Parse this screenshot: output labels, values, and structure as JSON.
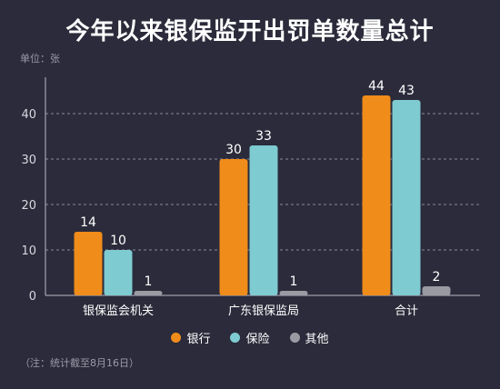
{
  "title": "今年以来银保监开出罚单数量总计",
  "unit_label": "单位：张",
  "note": "（注：统计截至8月16日）",
  "chart_data": {
    "type": "bar",
    "title": "今年以来银保监开出罚单数量总计",
    "categories": [
      "银保监会机关",
      "广东银保监局",
      "合计"
    ],
    "series": [
      {
        "name": "银行",
        "values": [
          14,
          30,
          44
        ],
        "color": "#f08c1a"
      },
      {
        "name": "保险",
        "values": [
          10,
          33,
          43
        ],
        "color": "#7ecbd1"
      },
      {
        "name": "其他",
        "values": [
          1,
          1,
          2
        ],
        "color": "#9a9aa3"
      }
    ],
    "yticks": [
      "0",
      "10",
      "20",
      "30",
      "40"
    ],
    "ylim": [
      0,
      48
    ],
    "grid": true,
    "legend_position": "bottom"
  }
}
